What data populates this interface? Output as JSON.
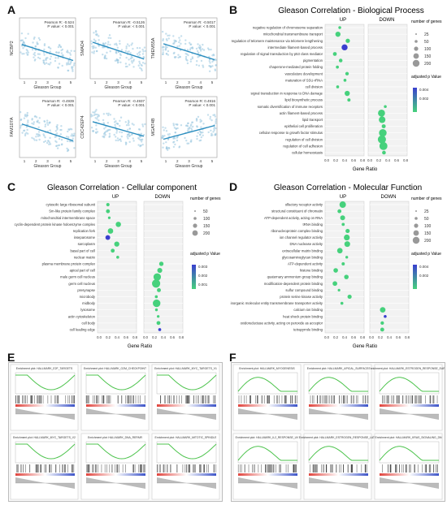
{
  "panels": {
    "A": {
      "letter": "A",
      "xlabel": "Gleason Group",
      "plots": [
        {
          "gene": "NCBP2",
          "pearson": "Pearson R: -0.524",
          "pvalue": "P value: < 0.001",
          "trend": [
            5.5,
            3.4
          ]
        },
        {
          "gene": "SMAD4",
          "pearson": "Pearson R: -0.5126",
          "pvalue": "P value: < 0.001",
          "trend": [
            5.8,
            3.6
          ]
        },
        {
          "gene": "TMEM55A",
          "pearson": "Pearson R: -0.5017",
          "pvalue": "P value: < 0.001",
          "trend": [
            5.6,
            3.5
          ]
        },
        {
          "gene": "FAM107A",
          "pearson": "Pearson R: -0.4939",
          "pvalue": "P value: < 0.001",
          "trend": [
            5.4,
            3.2
          ]
        },
        {
          "gene": "CDC42EP4",
          "pearson": "Pearson R: -0.4937",
          "pvalue": "P value: < 0.001",
          "trend": [
            5.7,
            3.8
          ]
        },
        {
          "gene": "MGAT4B",
          "pearson": "Pearson R: 0.4916",
          "pvalue": "P value: < 0.001",
          "trend": [
            3.4,
            5.2
          ]
        }
      ]
    },
    "B": {
      "letter": "B",
      "title": "Gleason Correlation - Biological Process",
      "up": "UP",
      "down": "DOWN",
      "xlabel": "Gene Ratio",
      "ticks": [
        "0.0",
        "0.2",
        "0.4",
        "0.6",
        "0.8"
      ],
      "size_legend_title": "number of genes",
      "size_legend": [
        "25",
        "50",
        "100",
        "150",
        "200"
      ],
      "color_legend_title": "adjusted p Value",
      "color_ticks": [
        "0.004",
        "0.002"
      ],
      "terms": [
        "negative regulation of chromosome separation",
        "mitochondrial transmembrane transport",
        "regulation of telomere maintenance via telomere lengthening",
        "intermediate filament-based process",
        "regulation of signal transduction by p53 class mediator",
        "pigmentation",
        "chaperone-mediated protein folding",
        "vasculature development",
        "maturation of SSU-rRNA",
        "cell division",
        "signal transduction in response to DNA damage",
        "lipid biosynthetic process",
        "somatic diversification of immune receptors",
        "actin filament-based process",
        "lipid transport",
        "epithelial cell proliferation",
        "cellular response to growth factor stimulus",
        "regulation of cell division",
        "regulation of cell adhesion",
        "cellular homeostasis"
      ]
    },
    "C": {
      "letter": "C",
      "title": "Gleason Correlation - Cellular component",
      "up": "UP",
      "down": "DOWN",
      "xlabel": "Gene Ratio",
      "ticks": [
        "0.0",
        "0.2",
        "0.4",
        "0.6",
        "0.8"
      ],
      "size_legend_title": "number of genes",
      "size_legend": [
        "50",
        "100",
        "150",
        "200"
      ],
      "color_legend_title": "adjusted p Value",
      "color_ticks": [
        "0.003",
        "0.002",
        "0.001"
      ],
      "terms": [
        "cytosolic large ribosomal subunit",
        "Sm-like protein family complex",
        "mitochondrial intermembrane space",
        "cyclin-dependent protein kinase holoenzyme complex",
        "replication fork",
        "inseparosome",
        "sarcoplasm",
        "basal part of cell",
        "nuclear matrix",
        "plasma membrane protein complex",
        "apical part of cell",
        "male germ cell nucleus",
        "germ cell nucleus",
        "presynapse",
        "microbody",
        "midbody",
        "lysosome",
        "actin cytoskeleton",
        "cell body",
        "cell leading edge"
      ]
    },
    "D": {
      "letter": "D",
      "title": "Gleason Correlation - Molecular Function",
      "up": "UP",
      "down": "DOWN",
      "xlabel": "Gene Ratio",
      "ticks": [
        "0.0",
        "0.2",
        "0.4",
        "0.6",
        "0.8"
      ],
      "size_legend_title": "number of genes",
      "size_legend": [
        "25",
        "50",
        "100",
        "150",
        "200"
      ],
      "color_legend_title": "adjusted p Value",
      "color_ticks": [
        "0.004",
        "0.002"
      ],
      "terms": [
        "olfactory receptor activity",
        "structural constituent of chromatin",
        "ATP-dependent activity, acting on RNA",
        "tRNA binding",
        "ribonucleoprotein complex binding",
        "ion channel regulator activity",
        "DNA nuclease activity",
        "extracellular matrix binding",
        "glycosaminoglycan binding",
        "ATP-dependent activity",
        "histone binding",
        "quaternary ammonium group binding",
        "modification-dependent protein binding",
        "sulfur compound binding",
        "protein serine kinase activity",
        "inorganic molecular entity transmembrane transporter activity",
        "calcium ion binding",
        "heat shock protein binding",
        "oxidoreductase activity, acting on peroxide as acceptor",
        "tetrapyrrole binding"
      ]
    },
    "E": {
      "letter": "E",
      "plots": [
        {
          "title": "Enrichment plot: HALLMARK_E2F_TARGETS",
          "shape": "down"
        },
        {
          "title": "Enrichment plot: HALLMARK_G2M_CHECKPOINT",
          "shape": "down"
        },
        {
          "title": "Enrichment plot: HALLMARK_MYC_TARGETS_V1",
          "shape": "down"
        },
        {
          "title": "Enrichment plot: HALLMARK_MYC_TARGETS_V2",
          "shape": "down"
        },
        {
          "title": "Enrichment plot: HALLMARK_DNA_REPAIR",
          "shape": "down"
        },
        {
          "title": "Enrichment plot: HALLMARK_MITOTIC_SPINDLE",
          "shape": "down"
        }
      ]
    },
    "F": {
      "letter": "F",
      "plots": [
        {
          "title": "Enrichment plot: HALLMARK_MYOGENESIS",
          "shape": "up"
        },
        {
          "title": "Enrichment plot: HALLMARK_APICAL_SURFACE",
          "shape": "up"
        },
        {
          "title": "Enrichment plot: HALLMARK_ESTROGEN_RESPONSE_EARLY",
          "shape": "up"
        },
        {
          "title": "Enrichment plot: HALLMARK_IL2_RESPONSE_UV",
          "shape": "up"
        },
        {
          "title": "Enrichment plot: HALLMARK_ESTROGEN_RESPONSE_LATE",
          "shape": "up"
        },
        {
          "title": "Enrichment plot: HALLMARK_KRAS_SIGNALING_DN",
          "shape": "up"
        }
      ]
    }
  },
  "colors": {
    "scatter_point": "#9ecae1",
    "regression": "#2a8dbf",
    "dot_high": "#46d17c",
    "dot_low": "#3a3fcf",
    "gsea_line": "#4cc34c"
  }
}
